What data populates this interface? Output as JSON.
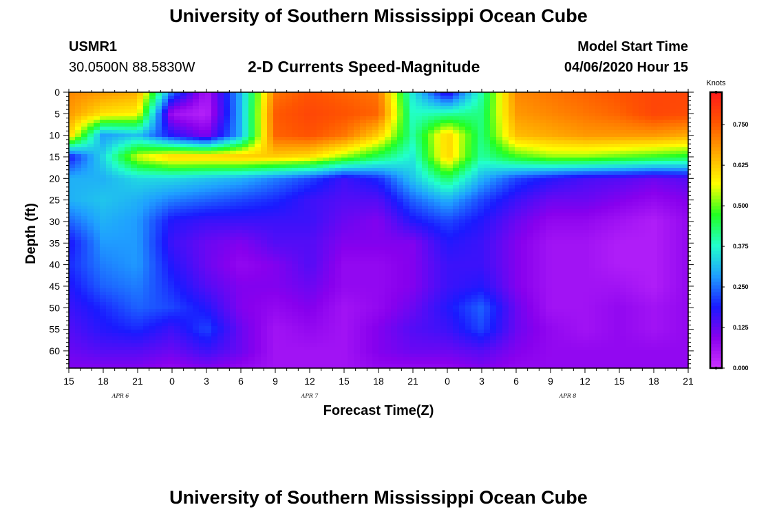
{
  "page": {
    "title_top": "University of Southern Mississippi Ocean Cube",
    "title_bottom": "University of Southern Mississippi Ocean Cube",
    "station_id": "USMR1",
    "station_coords": "30.0500N 88.5830W",
    "model_start_label": "Model Start Time",
    "model_start_value": "04/06/2020 Hour 15"
  },
  "chart_data": {
    "type": "heatmap",
    "title": "2-D Currents Speed-Magnitude",
    "xlabel": "Forecast Time(Z)",
    "ylabel": "Depth (ft)",
    "x_tick_labels": [
      "15",
      "18",
      "21",
      "0",
      "3",
      "6",
      "9",
      "12",
      "15",
      "18",
      "21",
      "0",
      "3",
      "6",
      "9",
      "12",
      "15",
      "18",
      "21"
    ],
    "x_date_labels": [
      "APR 6",
      "APR 7",
      "APR 8"
    ],
    "y_tick_labels": [
      "0",
      "5",
      "10",
      "15",
      "20",
      "25",
      "30",
      "35",
      "40",
      "45",
      "50",
      "55",
      "60"
    ],
    "ylim": [
      0,
      64
    ],
    "y_inverted": true,
    "colorbar": {
      "units": "Knots",
      "tick_labels": [
        "0.750",
        "0.625",
        "0.500",
        "0.375",
        "0.250",
        "0.125",
        "0.000"
      ],
      "range": [
        0.0,
        0.85
      ],
      "colors": [
        "#cc33ff",
        "#8800ee",
        "#1a1aff",
        "#1fa0ff",
        "#22ffcc",
        "#22ff22",
        "#ffff00",
        "#ffaa00",
        "#ff5500",
        "#ff1a1a"
      ]
    },
    "hours_from_start": [
      0,
      3,
      6,
      9,
      12,
      15,
      18,
      21,
      24,
      27,
      30,
      33,
      36,
      39,
      42,
      45,
      48,
      51,
      54
    ],
    "depths_ft": [
      0,
      5,
      10,
      15,
      20,
      25,
      30,
      35,
      40,
      45,
      50,
      55,
      60,
      64
    ],
    "speed_knots": [
      [
        0.7,
        0.68,
        0.66,
        0.25,
        0.05,
        0.3,
        0.72,
        0.76,
        0.74,
        0.72,
        0.35,
        0.15,
        0.4,
        0.7,
        0.72,
        0.74,
        0.76,
        0.78,
        0.78
      ],
      [
        0.68,
        0.6,
        0.58,
        0.06,
        0.03,
        0.3,
        0.75,
        0.78,
        0.76,
        0.74,
        0.38,
        0.4,
        0.42,
        0.68,
        0.7,
        0.72,
        0.74,
        0.78,
        0.77
      ],
      [
        0.62,
        0.28,
        0.32,
        0.18,
        0.1,
        0.3,
        0.74,
        0.76,
        0.72,
        0.62,
        0.4,
        0.62,
        0.42,
        0.64,
        0.66,
        0.68,
        0.68,
        0.68,
        0.66
      ],
      [
        0.18,
        0.34,
        0.55,
        0.62,
        0.62,
        0.63,
        0.62,
        0.6,
        0.52,
        0.44,
        0.36,
        0.62,
        0.4,
        0.48,
        0.52,
        0.52,
        0.5,
        0.48,
        0.46
      ],
      [
        0.3,
        0.3,
        0.34,
        0.34,
        0.32,
        0.3,
        0.26,
        0.22,
        0.16,
        0.2,
        0.32,
        0.44,
        0.3,
        0.22,
        0.18,
        0.15,
        0.14,
        0.12,
        0.14
      ],
      [
        0.3,
        0.32,
        0.3,
        0.26,
        0.24,
        0.22,
        0.2,
        0.16,
        0.14,
        0.14,
        0.24,
        0.3,
        0.22,
        0.16,
        0.12,
        0.12,
        0.1,
        0.08,
        0.1
      ],
      [
        0.24,
        0.3,
        0.28,
        0.18,
        0.16,
        0.16,
        0.16,
        0.16,
        0.12,
        0.1,
        0.18,
        0.22,
        0.18,
        0.12,
        0.08,
        0.08,
        0.06,
        0.04,
        0.08
      ],
      [
        0.18,
        0.28,
        0.28,
        0.16,
        0.12,
        0.1,
        0.14,
        0.14,
        0.1,
        0.1,
        0.1,
        0.18,
        0.16,
        0.1,
        0.06,
        0.06,
        0.04,
        0.04,
        0.08
      ],
      [
        0.2,
        0.26,
        0.28,
        0.18,
        0.12,
        0.08,
        0.1,
        0.14,
        0.08,
        0.08,
        0.1,
        0.16,
        0.16,
        0.1,
        0.06,
        0.06,
        0.04,
        0.04,
        0.08
      ],
      [
        0.18,
        0.24,
        0.26,
        0.2,
        0.14,
        0.1,
        0.1,
        0.12,
        0.08,
        0.08,
        0.1,
        0.16,
        0.18,
        0.1,
        0.06,
        0.06,
        0.06,
        0.04,
        0.08
      ],
      [
        0.16,
        0.2,
        0.24,
        0.22,
        0.18,
        0.1,
        0.08,
        0.1,
        0.06,
        0.08,
        0.12,
        0.18,
        0.24,
        0.12,
        0.06,
        0.06,
        0.08,
        0.06,
        0.08
      ],
      [
        0.14,
        0.18,
        0.2,
        0.16,
        0.22,
        0.12,
        0.06,
        0.08,
        0.06,
        0.1,
        0.14,
        0.16,
        0.22,
        0.12,
        0.08,
        0.06,
        0.08,
        0.06,
        0.08
      ],
      [
        0.12,
        0.14,
        0.14,
        0.12,
        0.16,
        0.12,
        0.06,
        0.06,
        0.06,
        0.1,
        0.12,
        0.12,
        0.14,
        0.1,
        0.08,
        0.08,
        0.08,
        0.08,
        0.08
      ],
      [
        0.1,
        0.1,
        0.1,
        0.08,
        0.1,
        0.08,
        0.06,
        0.06,
        0.06,
        0.08,
        0.08,
        0.08,
        0.1,
        0.08,
        0.08,
        0.08,
        0.08,
        0.08,
        0.08
      ]
    ]
  }
}
